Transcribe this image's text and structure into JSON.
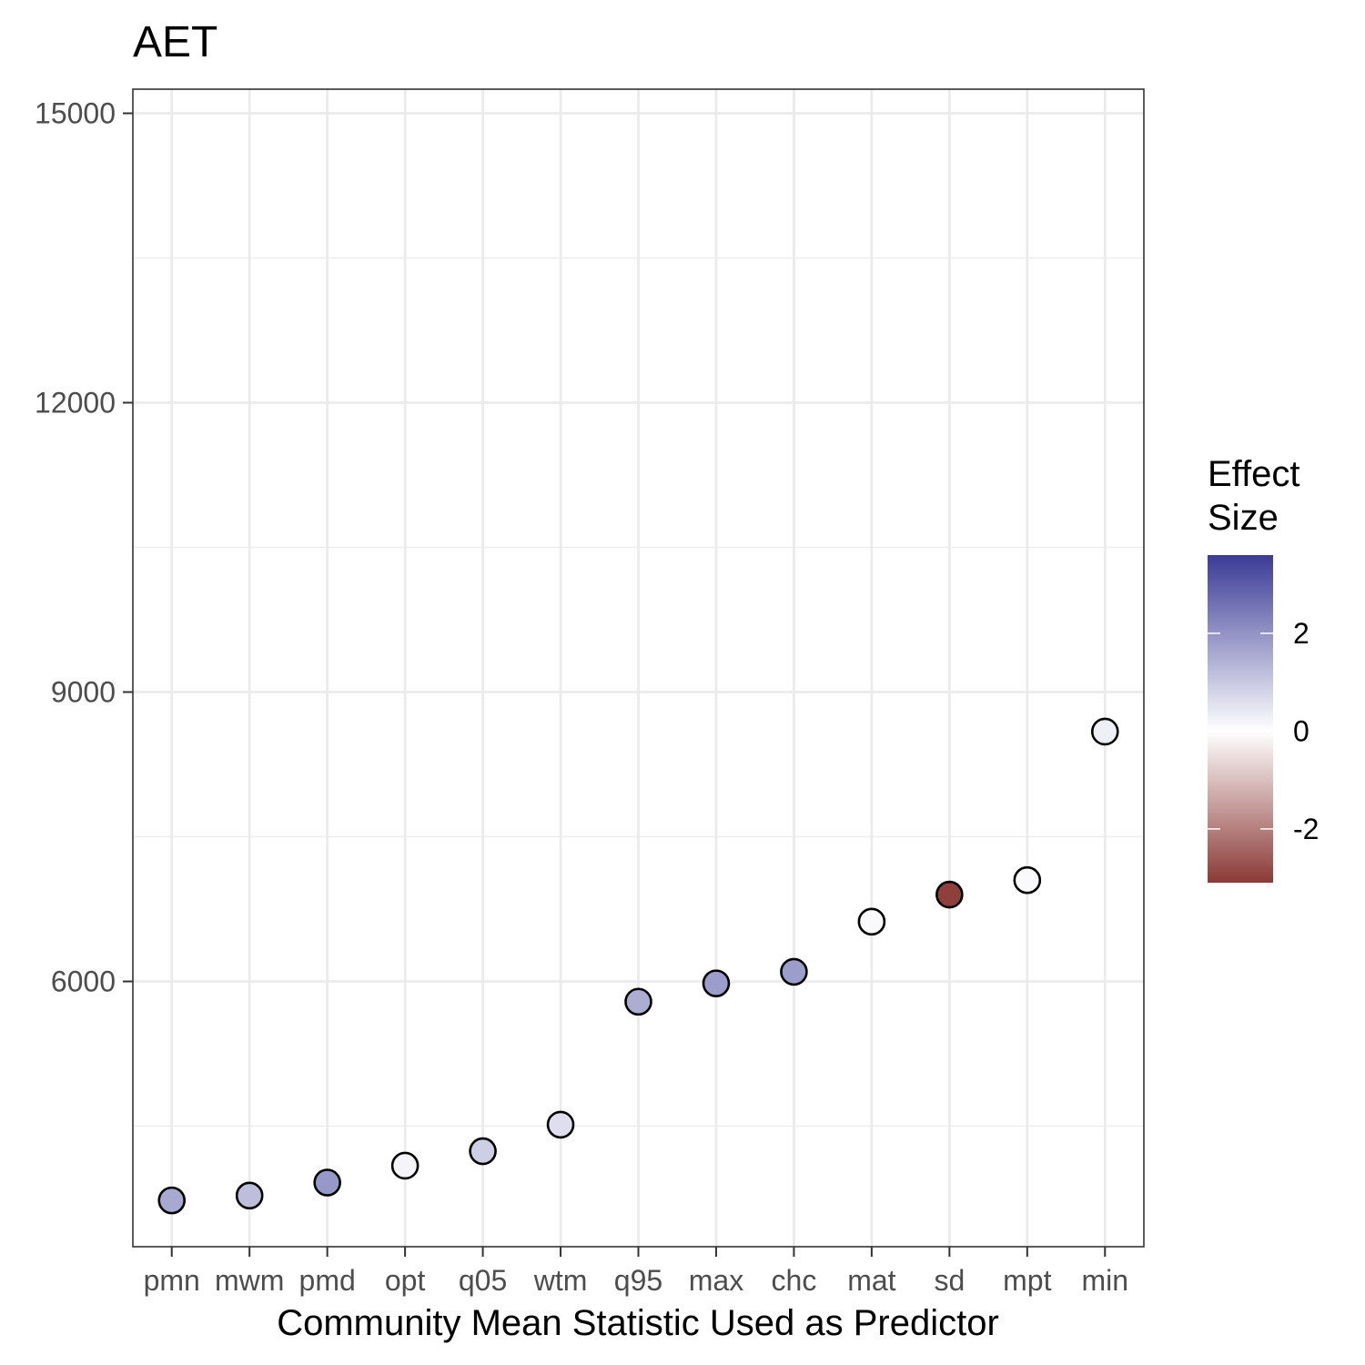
{
  "chart_data": {
    "type": "scatter",
    "title": "AET",
    "xlabel": "Community Mean Statistic Used as Predictor",
    "ylabel": "",
    "categories": [
      "pmn",
      "mwm",
      "pmd",
      "opt",
      "q05",
      "wtm",
      "q95",
      "max",
      "chc",
      "mat",
      "sd",
      "mpt",
      "min"
    ],
    "values": [
      3730,
      3780,
      3915,
      4090,
      4240,
      4515,
      5790,
      5980,
      6100,
      6620,
      6900,
      7050,
      8590
    ],
    "effect_size": [
      1.6,
      1.2,
      1.9,
      0.2,
      0.9,
      0.6,
      1.5,
      1.8,
      1.8,
      0.1,
      -3.0,
      0.1,
      0.3
    ],
    "ylim": [
      3250,
      15250
    ],
    "y_ticks": [
      6000,
      9000,
      12000,
      15000
    ],
    "y_tick_labels": [
      "6000",
      "9000",
      "12000",
      "15000"
    ],
    "grid": true,
    "legend": {
      "title_line1": "Effect",
      "title_line2": "Size",
      "position": "right",
      "range": [
        -3.1,
        3.6
      ],
      "ticks": [
        -2,
        0,
        2
      ],
      "tick_labels": [
        "-2",
        "0",
        "2"
      ],
      "colors": {
        "low": "#8b3a36",
        "mid": "#ffffff",
        "high": "#3b3b97"
      }
    }
  }
}
